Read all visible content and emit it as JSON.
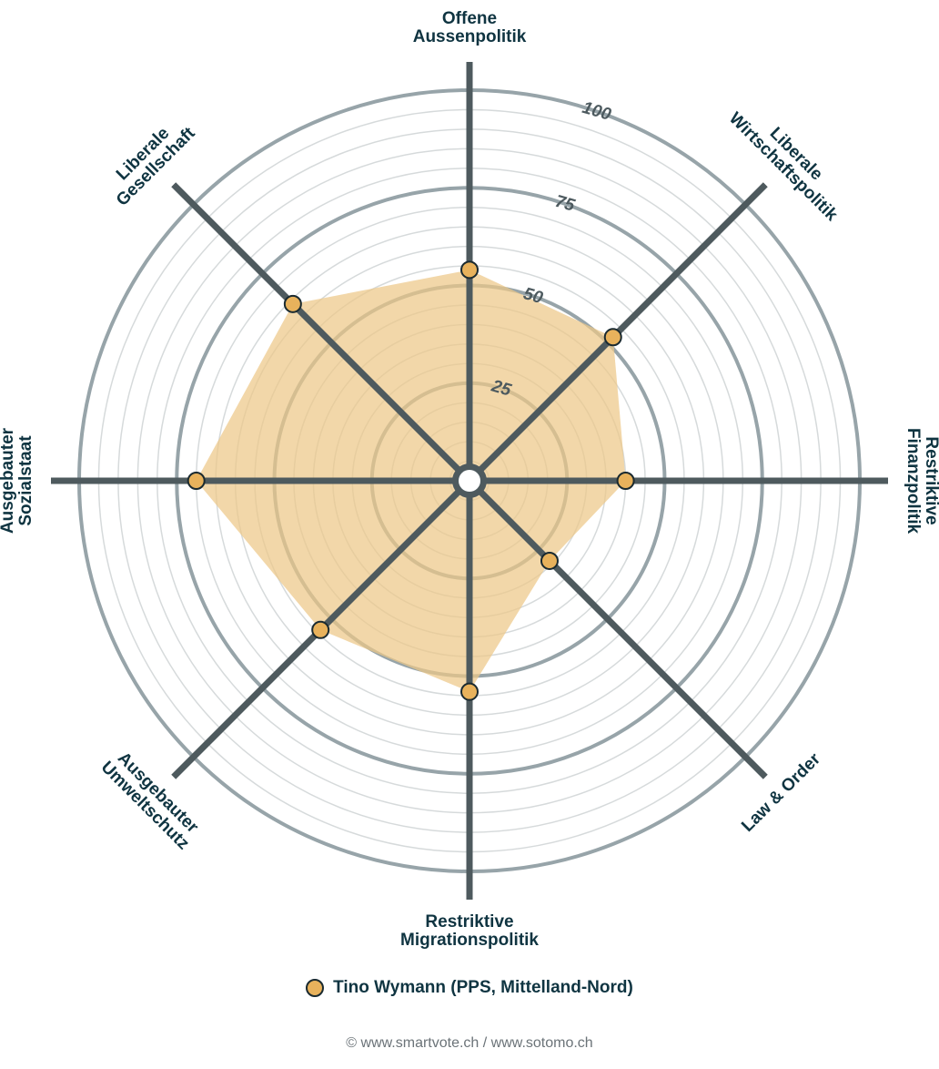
{
  "chart_data": {
    "type": "radar",
    "axes": [
      "Offene Aussenpolitik",
      "Liberale Wirtschaftspolitik",
      "Restriktive Finanzpolitik",
      "Law & Order",
      "Restriktive Migrationspolitik",
      "Ausgebauter Umweltschutz",
      "Ausgebauter Sozialstaat",
      "Liberale Gesellschaft"
    ],
    "axis_label_lines": [
      [
        "Offene",
        "Aussenpolitik"
      ],
      [
        "Liberale",
        "Wirtschaftspolitik"
      ],
      [
        "Restriktive",
        "Finanzpolitik"
      ],
      [
        "Law & Order"
      ],
      [
        "Restriktive",
        "Migrationspolitik"
      ],
      [
        "Ausgebauter",
        "Umweltschutz"
      ],
      [
        "Ausgebauter",
        "Sozialstaat"
      ],
      [
        "Liberale",
        "Gesellschaft"
      ]
    ],
    "series": [
      {
        "name": "Tino Wymann (PPS, Mittelland-Nord)",
        "values": [
          54,
          52,
          40,
          29,
          54,
          54,
          70,
          64
        ],
        "color": "#e8b25c"
      }
    ],
    "r_range": [
      0,
      100
    ],
    "r_ticks": [
      25,
      50,
      75,
      100
    ],
    "minor_step": 5,
    "grid": true,
    "legend_position": "bottom"
  },
  "legend": {
    "label": "Tino Wymann (PPS, Mittelland-Nord)",
    "marker_color": "#e8b25c"
  },
  "footer": {
    "text": "© www.smartvote.ch / www.sotomo.ch"
  },
  "colors": {
    "fill": "#edc788",
    "marker": "#e8b25c",
    "spoke": "#4e5a5e",
    "major_ring": "#97a4a9",
    "minor_ring": "#d6dadb",
    "label": "#0f3441"
  }
}
